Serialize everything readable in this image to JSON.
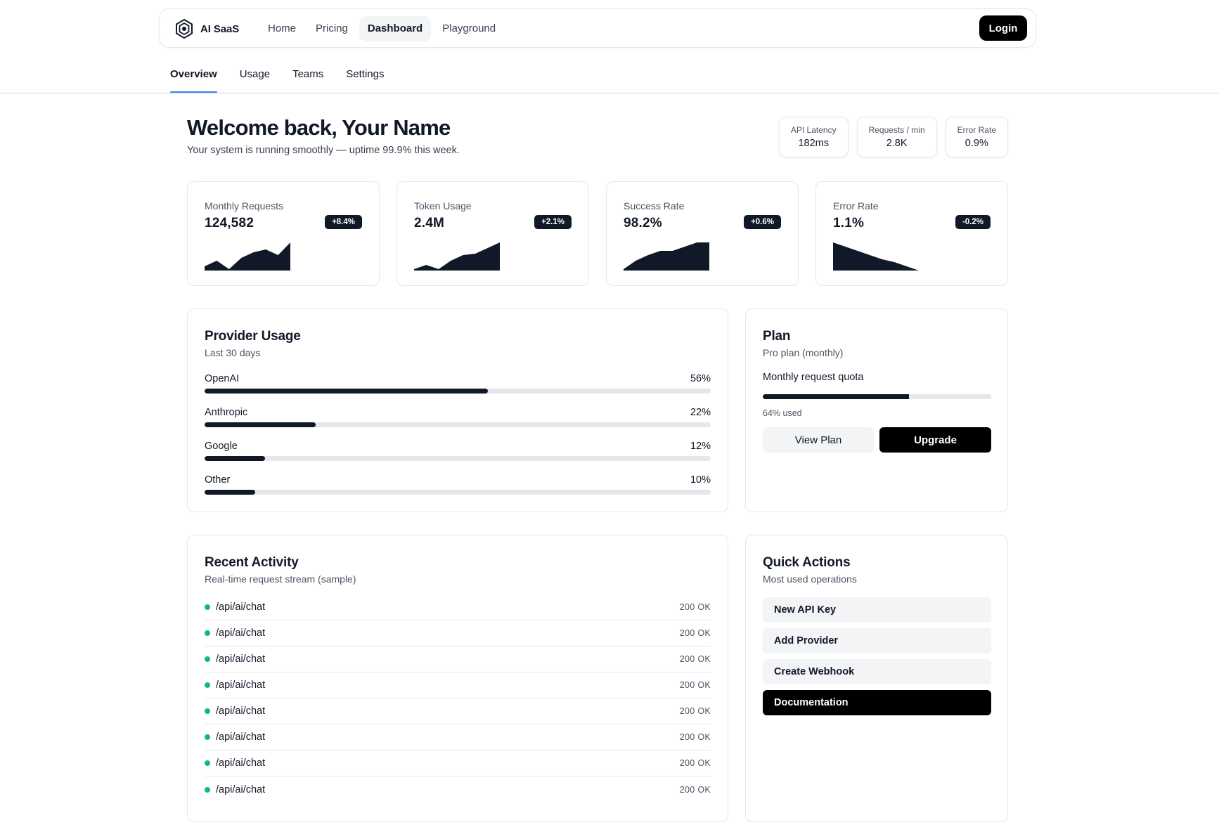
{
  "brand": {
    "name": "AI SaaS",
    "logo_icon": "openai-logo-icon"
  },
  "nav": {
    "links": [
      {
        "label": "Home",
        "active": false
      },
      {
        "label": "Pricing",
        "active": false
      },
      {
        "label": "Dashboard",
        "active": true
      },
      {
        "label": "Playground",
        "active": false
      }
    ],
    "login_label": "Login"
  },
  "subtabs": [
    {
      "label": "Overview",
      "active": true
    },
    {
      "label": "Usage",
      "active": false
    },
    {
      "label": "Teams",
      "active": false
    },
    {
      "label": "Settings",
      "active": false
    }
  ],
  "header": {
    "title": "Welcome back, Your Name",
    "subtitle": "Your system is running smoothly — uptime 99.9% this week."
  },
  "metrics": [
    {
      "label": "API Latency",
      "value": "182ms"
    },
    {
      "label": "Requests / min",
      "value": "2.8K"
    },
    {
      "label": "Error Rate",
      "value": "0.9%"
    }
  ],
  "kpis": [
    {
      "label": "Monthly Requests",
      "value": "124,582",
      "delta": "+8.4%",
      "spark": [
        3,
        7,
        1,
        9,
        13,
        15,
        11,
        20
      ]
    },
    {
      "label": "Token Usage",
      "value": "2.4M",
      "delta": "+2.1%",
      "spark": [
        1,
        4,
        1,
        7,
        11,
        12,
        16,
        20
      ]
    },
    {
      "label": "Success Rate",
      "value": "98.2%",
      "delta": "+0.6%",
      "spark": [
        1,
        7,
        11,
        14,
        14,
        17,
        20,
        20
      ]
    },
    {
      "label": "Error Rate",
      "value": "1.1%",
      "delta": "-0.2%",
      "spark": [
        20,
        17,
        14,
        11,
        8,
        6,
        3,
        0
      ]
    }
  ],
  "provider_usage": {
    "title": "Provider Usage",
    "subtitle": "Last 30 days",
    "providers": [
      {
        "name": "OpenAI",
        "percent_label": "56%",
        "percent": 56
      },
      {
        "name": "Anthropic",
        "percent_label": "22%",
        "percent": 22
      },
      {
        "name": "Google",
        "percent_label": "12%",
        "percent": 12
      },
      {
        "name": "Other",
        "percent_label": "10%",
        "percent": 10
      }
    ]
  },
  "plan": {
    "title": "Plan",
    "subtitle": "Pro plan (monthly)",
    "quota_label": "Monthly request quota",
    "quota_percent": 64,
    "quota_used_label": "64% used",
    "view_label": "View Plan",
    "upgrade_label": "Upgrade"
  },
  "recent_activity": {
    "title": "Recent Activity",
    "subtitle": "Real-time request stream (sample)",
    "rows": [
      {
        "path": "/api/ai/chat",
        "status": "200 OK"
      },
      {
        "path": "/api/ai/chat",
        "status": "200 OK"
      },
      {
        "path": "/api/ai/chat",
        "status": "200 OK"
      },
      {
        "path": "/api/ai/chat",
        "status": "200 OK"
      },
      {
        "path": "/api/ai/chat",
        "status": "200 OK"
      },
      {
        "path": "/api/ai/chat",
        "status": "200 OK"
      },
      {
        "path": "/api/ai/chat",
        "status": "200 OK"
      },
      {
        "path": "/api/ai/chat",
        "status": "200 OK"
      }
    ]
  },
  "quick_actions": {
    "title": "Quick Actions",
    "subtitle": "Most used operations",
    "actions": [
      {
        "label": "New API Key",
        "primary": false
      },
      {
        "label": "Add Provider",
        "primary": false
      },
      {
        "label": "Create Webhook",
        "primary": false
      },
      {
        "label": "Documentation",
        "primary": true
      }
    ]
  },
  "colors": {
    "accent": "#3b82f6",
    "dark": "#111827",
    "success": "#10b981",
    "track": "#e5e7eb"
  }
}
